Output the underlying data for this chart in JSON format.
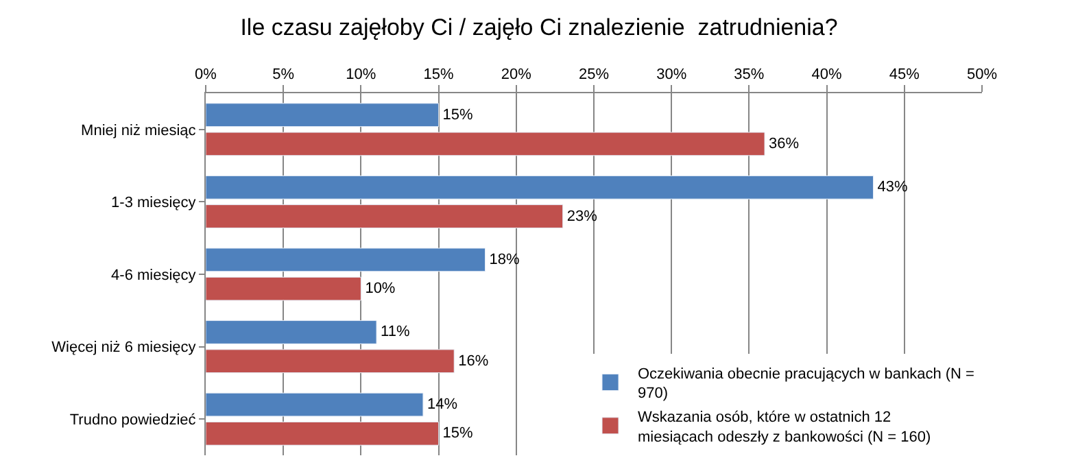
{
  "chart_data": {
    "type": "bar",
    "orientation": "horizontal",
    "title": "Ile czasu zajęłoby Ci / zajęło Ci znalezienie  zatrudnienia?",
    "categories": [
      "Mniej niż miesiąc",
      "1-3 miesięcy",
      "4-6 miesięcy",
      "Więcej niż 6 miesięcy",
      "Trudno powiedzieć"
    ],
    "series": [
      {
        "name": "Oczekiwania obecnie pracujących w bankach (N = 970)",
        "color": "#4f81bd",
        "values": [
          15,
          43,
          18,
          11,
          14
        ],
        "value_labels": [
          "15%",
          "43%",
          "18%",
          "11%",
          "14%"
        ]
      },
      {
        "name": "Wskazania osób, które w ostatnich 12 miesiącach odeszły z bankowości (N = 160)",
        "color": "#c0504d",
        "values": [
          36,
          23,
          10,
          16,
          15
        ],
        "value_labels": [
          "36%",
          "23%",
          "10%",
          "16%",
          "15%"
        ]
      }
    ],
    "xlim": [
      0,
      50
    ],
    "xticks": [
      {
        "value": 0,
        "label": "0%"
      },
      {
        "value": 5,
        "label": "5%"
      },
      {
        "value": 10,
        "label": "10%"
      },
      {
        "value": 15,
        "label": "15%"
      },
      {
        "value": 20,
        "label": "20%"
      },
      {
        "value": 25,
        "label": "25%"
      },
      {
        "value": 30,
        "label": "30%"
      },
      {
        "value": 35,
        "label": "35%"
      },
      {
        "value": 40,
        "label": "40%"
      },
      {
        "value": 45,
        "label": "45%"
      },
      {
        "value": 50,
        "label": "50%"
      }
    ],
    "grid": "x",
    "legend": "bottom right"
  }
}
